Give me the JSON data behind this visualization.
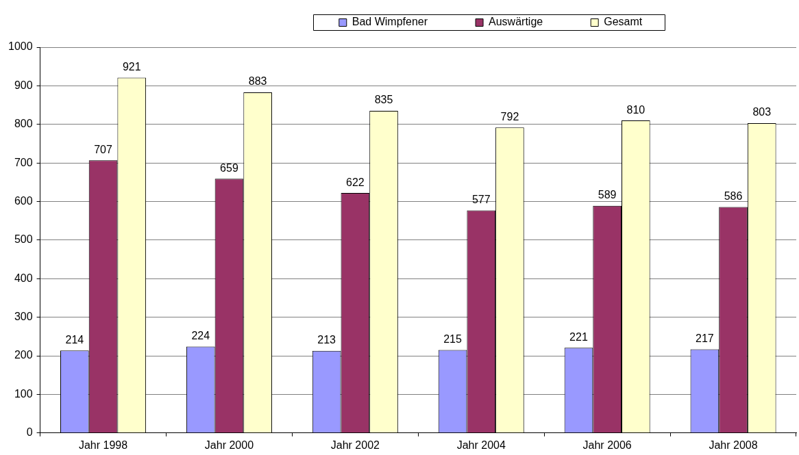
{
  "chart_data": {
    "type": "bar",
    "categories": [
      "Jahr 1998",
      "Jahr 2000",
      "Jahr 2002",
      "Jahr 2004",
      "Jahr 2006",
      "Jahr 2008"
    ],
    "series": [
      {
        "name": "Bad Wimpfener",
        "color": "#9999ff",
        "values": [
          214,
          224,
          213,
          215,
          221,
          217
        ]
      },
      {
        "name": "Auswärtige",
        "color": "#993366",
        "values": [
          707,
          659,
          622,
          577,
          589,
          586
        ]
      },
      {
        "name": "Gesamt",
        "color": "#ffffcc",
        "values": [
          921,
          883,
          835,
          792,
          810,
          803
        ]
      }
    ],
    "ylim": [
      0,
      1000
    ],
    "yticks": [
      0,
      100,
      200,
      300,
      400,
      500,
      600,
      700,
      800,
      900,
      1000
    ],
    "grid": "y",
    "legend": "top",
    "data_labels": true
  }
}
